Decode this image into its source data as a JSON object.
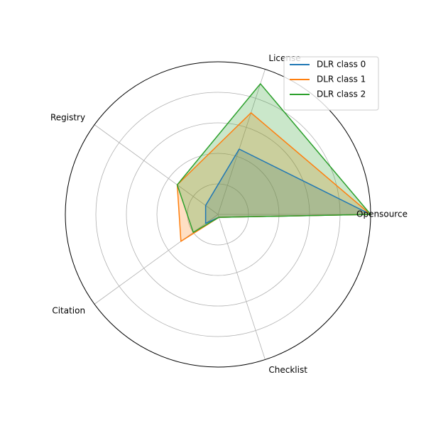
{
  "chart_data": {
    "type": "radar",
    "axes": [
      "Opensource",
      "License",
      "Registry",
      "Citation",
      "Checklist"
    ],
    "rlim": [
      0,
      1
    ],
    "grid": true,
    "legend_position": "top-right",
    "series": [
      {
        "name": "DLR class 0",
        "color": "#1f77b4",
        "values": [
          1.0,
          0.45,
          0.1,
          0.1,
          0.02
        ]
      },
      {
        "name": "DLR class 1",
        "color": "#ff7f0e",
        "values": [
          1.0,
          0.7,
          0.33,
          0.3,
          0.02
        ]
      },
      {
        "name": "DLR class 2",
        "color": "#2ca02c",
        "values": [
          1.0,
          0.9,
          0.33,
          0.2,
          0.02
        ]
      }
    ]
  }
}
